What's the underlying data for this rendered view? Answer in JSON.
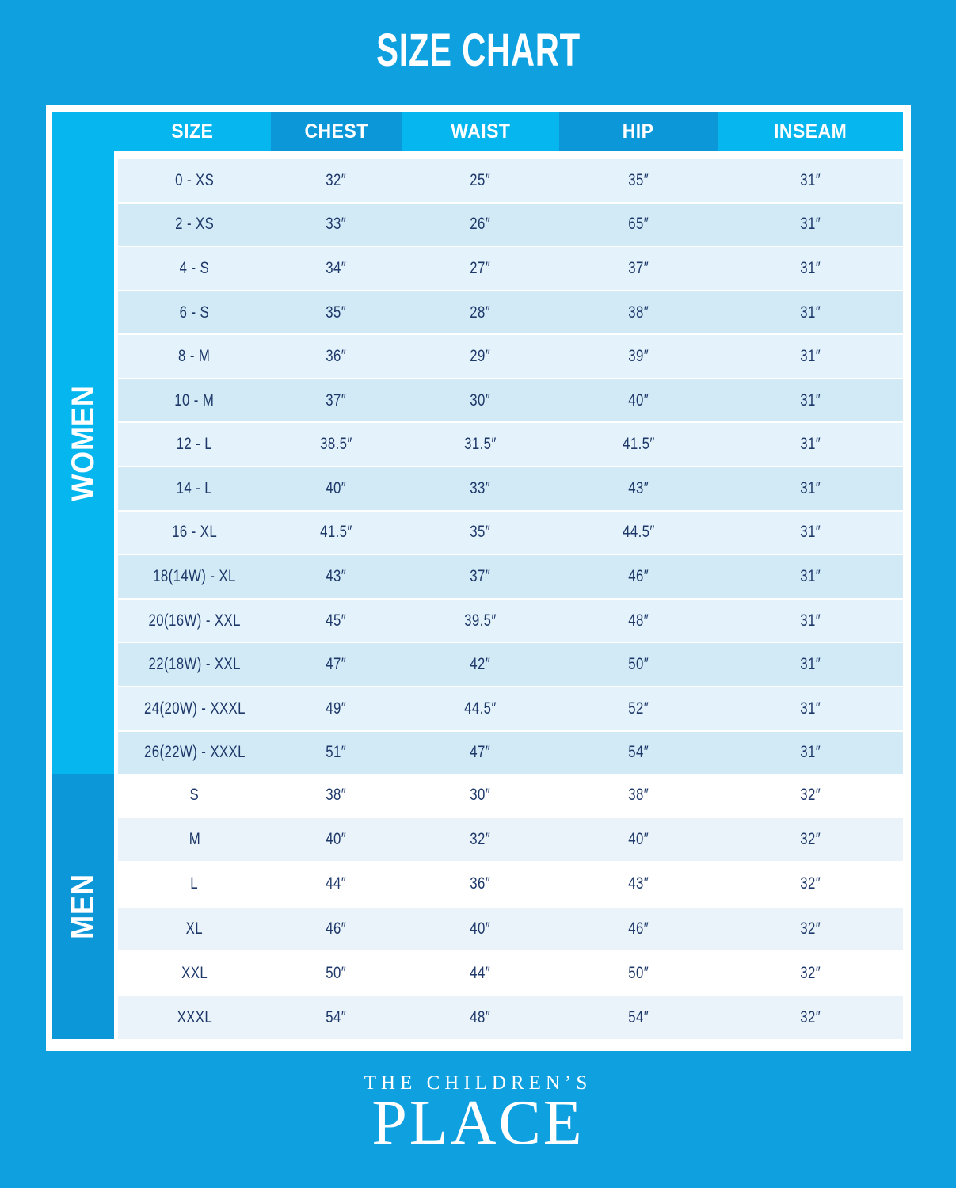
{
  "title": "SIZE CHART",
  "chart_data": {
    "type": "table",
    "title": "SIZE CHART",
    "columns": [
      "SIZE",
      "CHEST",
      "WAIST",
      "HIP",
      "INSEAM"
    ],
    "sections": [
      {
        "label": "WOMEN",
        "rows": [
          {
            "size": "0 - XS",
            "chest": "32″",
            "waist": "25″",
            "hip": "35″",
            "inseam": "31″"
          },
          {
            "size": "2 - XS",
            "chest": "33″",
            "waist": "26″",
            "hip": "65″",
            "inseam": "31″"
          },
          {
            "size": "4 - S",
            "chest": "34″",
            "waist": "27″",
            "hip": "37″",
            "inseam": "31″"
          },
          {
            "size": "6 - S",
            "chest": "35″",
            "waist": "28″",
            "hip": "38″",
            "inseam": "31″"
          },
          {
            "size": "8 - M",
            "chest": "36″",
            "waist": "29″",
            "hip": "39″",
            "inseam": "31″"
          },
          {
            "size": "10 - M",
            "chest": "37″",
            "waist": "30″",
            "hip": "40″",
            "inseam": "31″"
          },
          {
            "size": "12 - L",
            "chest": "38.5″",
            "waist": "31.5″",
            "hip": "41.5″",
            "inseam": "31″"
          },
          {
            "size": "14 - L",
            "chest": "40″",
            "waist": "33″",
            "hip": "43″",
            "inseam": "31″"
          },
          {
            "size": "16 - XL",
            "chest": "41.5″",
            "waist": "35″",
            "hip": "44.5″",
            "inseam": "31″"
          },
          {
            "size": "18(14W) - XL",
            "chest": "43″",
            "waist": "37″",
            "hip": "46″",
            "inseam": "31″"
          },
          {
            "size": "20(16W) - XXL",
            "chest": "45″",
            "waist": "39.5″",
            "hip": "48″",
            "inseam": "31″"
          },
          {
            "size": "22(18W) - XXL",
            "chest": "47″",
            "waist": "42″",
            "hip": "50″",
            "inseam": "31″"
          },
          {
            "size": "24(20W) - XXXL",
            "chest": "49″",
            "waist": "44.5″",
            "hip": "52″",
            "inseam": "31″"
          },
          {
            "size": "26(22W) - XXXL",
            "chest": "51″",
            "waist": "47″",
            "hip": "54″",
            "inseam": "31″"
          }
        ]
      },
      {
        "label": "MEN",
        "rows": [
          {
            "size": "S",
            "chest": "38″",
            "waist": "30″",
            "hip": "38″",
            "inseam": "32″"
          },
          {
            "size": "M",
            "chest": "40″",
            "waist": "32″",
            "hip": "40″",
            "inseam": "32″"
          },
          {
            "size": "L",
            "chest": "44″",
            "waist": "36″",
            "hip": "43″",
            "inseam": "32″"
          },
          {
            "size": "XL",
            "chest": "46″",
            "waist": "40″",
            "hip": "46″",
            "inseam": "32″"
          },
          {
            "size": "XXL",
            "chest": "50″",
            "waist": "44″",
            "hip": "50″",
            "inseam": "32″"
          },
          {
            "size": "XXXL",
            "chest": "54″",
            "waist": "48″",
            "hip": "54″",
            "inseam": "32″"
          }
        ]
      }
    ]
  },
  "logo": {
    "line1": "THE CHILDREN’S",
    "line2": "PLACE"
  },
  "colors": {
    "background": "#0FA0E0",
    "header_light": "#06B6EE",
    "header_dark": "#0C97D9",
    "women_sidebar": "#06B6EE",
    "men_sidebar": "#0C97D9",
    "women_row_odd": "#E4F3FB",
    "women_row_even": "#D2EAF6",
    "men_row_odd": "#FFFFFF",
    "men_row_even": "#EAF3F9",
    "text_navy": "#1D3869",
    "frame_white": "#FFFFFF"
  }
}
